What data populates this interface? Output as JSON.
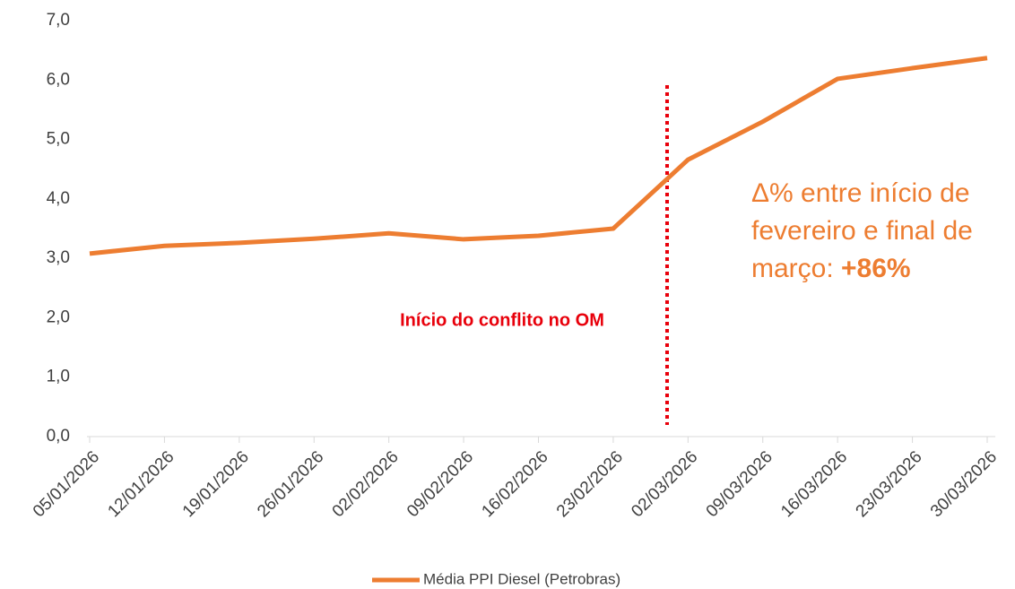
{
  "chart_data": {
    "type": "line",
    "categories": [
      "05/01/2026",
      "12/01/2026",
      "19/01/2026",
      "26/01/2026",
      "02/02/2026",
      "09/02/2026",
      "16/02/2026",
      "23/02/2026",
      "02/03/2026",
      "09/03/2026",
      "16/03/2026",
      "23/03/2026",
      "30/03/2026"
    ],
    "series": [
      {
        "name": "Média PPI Diesel (Petrobras)",
        "color": "#ED7D31",
        "values": [
          3.08,
          3.21,
          3.26,
          3.33,
          3.42,
          3.32,
          3.38,
          3.5,
          4.66,
          5.3,
          6.02,
          6.2,
          6.37
        ]
      }
    ],
    "ylim": [
      0,
      7
    ],
    "yticks": [
      {
        "value": 0,
        "label": "0,0"
      },
      {
        "value": 1,
        "label": "1,0"
      },
      {
        "value": 2,
        "label": "2,0"
      },
      {
        "value": 3,
        "label": "3,0"
      },
      {
        "value": 4,
        "label": "4,0"
      },
      {
        "value": 5,
        "label": "5,0"
      },
      {
        "value": 6,
        "label": "6,0"
      },
      {
        "value": 7,
        "label": "7,0"
      }
    ],
    "grid": false,
    "legend": "bottom",
    "annotations": {
      "event": "Início do conflito no OM",
      "event_color": "#E8000B",
      "delta_lines": [
        "Δ% entre início de",
        "fevereiro e final de",
        "março: "
      ],
      "delta_value": "+86%"
    }
  }
}
